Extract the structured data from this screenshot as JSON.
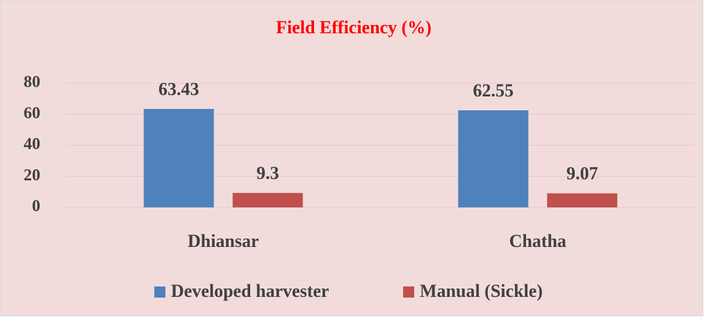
{
  "chart_data": {
    "type": "bar",
    "title": "Field Efficiency (%)",
    "categories": [
      "Dhiansar",
      "Chatha"
    ],
    "series": [
      {
        "name": "Developed harvester",
        "color": "#4f81bd",
        "values": [
          63.43,
          62.55
        ]
      },
      {
        "name": "Manual (Sickle)",
        "color": "#c0504d",
        "values": [
          9.3,
          9.07
        ]
      }
    ],
    "ylim": [
      0,
      80
    ],
    "yticks": [
      0,
      20,
      40,
      60,
      80
    ],
    "grid": true,
    "legend": "bottom"
  }
}
